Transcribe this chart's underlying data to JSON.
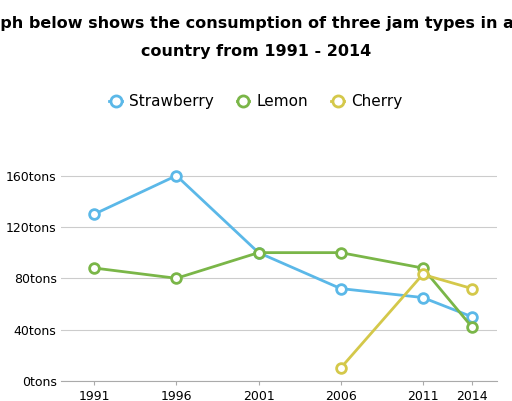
{
  "title_line1": "The graph below shows the consumption of three jam types in an Asian",
  "title_line2": "country from 1991 - 2014",
  "years": [
    1991,
    1996,
    2001,
    2006,
    2011,
    2014
  ],
  "strawberry": [
    130,
    160,
    100,
    72,
    65,
    50
  ],
  "lemon": [
    88,
    80,
    100,
    100,
    88,
    42
  ],
  "cherry": [
    null,
    null,
    null,
    10,
    83,
    72
  ],
  "strawberry_color": "#5bb8e8",
  "lemon_color": "#7ab648",
  "cherry_color": "#d4c84a",
  "ylim": [
    0,
    175
  ],
  "yticks": [
    0,
    40,
    80,
    120,
    160
  ],
  "ytick_labels": [
    "0tons",
    "40tons",
    "80tons",
    "120tons",
    "160tons"
  ],
  "xticks": [
    1991,
    1996,
    2001,
    2006,
    2011,
    2014
  ],
  "bg_color": "#ffffff",
  "grid_color": "#cccccc",
  "marker": "o",
  "marker_size": 7,
  "linewidth": 2,
  "title_fontsize": 11.5,
  "legend_fontsize": 11,
  "tick_fontsize": 9
}
